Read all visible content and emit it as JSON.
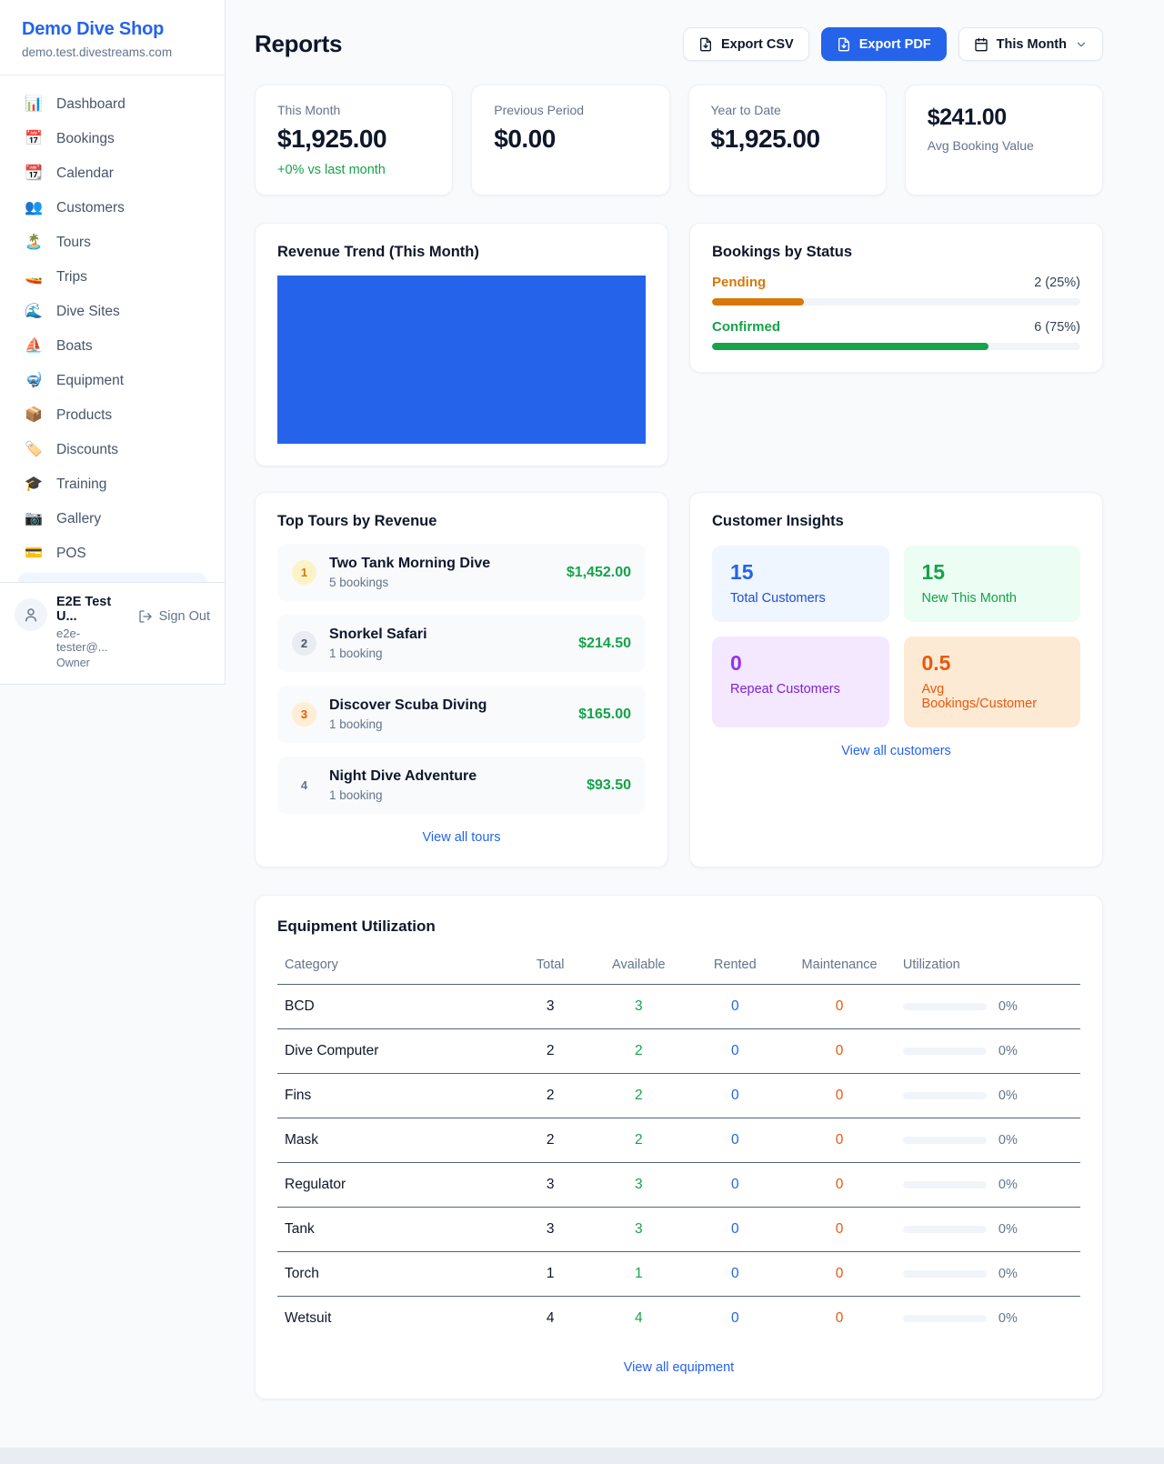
{
  "app": {
    "brand": "Demo Dive Shop",
    "subdomain": "demo.test.divestreams.com"
  },
  "colors": {
    "accent_blue": "#2563eb",
    "positive_green": "#16a34a",
    "pending_orange": "#d97706",
    "maintenance_orange": "#ea580c",
    "repeat_purple": "#9333ea"
  },
  "sidebar": {
    "items": [
      {
        "label": "Dashboard",
        "icon": "📊"
      },
      {
        "label": "Bookings",
        "icon": "📅"
      },
      {
        "label": "Calendar",
        "icon": "📆"
      },
      {
        "label": "Customers",
        "icon": "👥"
      },
      {
        "label": "Tours",
        "icon": "🏝️"
      },
      {
        "label": "Trips",
        "icon": "🚤"
      },
      {
        "label": "Dive Sites",
        "icon": "🌊"
      },
      {
        "label": "Boats",
        "icon": "⛵"
      },
      {
        "label": "Equipment",
        "icon": "🤿"
      },
      {
        "label": "Products",
        "icon": "📦"
      },
      {
        "label": "Discounts",
        "icon": "🏷️"
      },
      {
        "label": "Training",
        "icon": "🎓"
      },
      {
        "label": "Gallery",
        "icon": "📷"
      },
      {
        "label": "POS",
        "icon": "💳"
      }
    ],
    "user": {
      "name": "E2E Test U...",
      "email": "e2e-tester@...",
      "role": "Owner",
      "signout_label": "Sign Out"
    }
  },
  "header": {
    "title": "Reports",
    "export_csv_label": "Export CSV",
    "export_pdf_label": "Export PDF",
    "period_label": "This Month"
  },
  "stats": [
    {
      "label": "This Month",
      "value": "$1,925.00",
      "delta": "+0% vs last month"
    },
    {
      "label": "Previous Period",
      "value": "$0.00"
    },
    {
      "label": "Year to Date",
      "value": "$1,925.00"
    },
    {
      "label": "Avg Booking Value",
      "value": "$241.00"
    }
  ],
  "revenue_trend": {
    "title": "Revenue Trend (This Month)",
    "bar_color": "#2563eb"
  },
  "bookings_by_status": {
    "title": "Bookings by Status",
    "rows": [
      {
        "label": "Pending",
        "count_text": "2 (25%)",
        "pct": "25%"
      },
      {
        "label": "Confirmed",
        "count_text": "6 (75%)",
        "pct": "75%"
      }
    ]
  },
  "top_tours": {
    "title": "Top Tours by Revenue",
    "rows": [
      {
        "rank": "1",
        "name": "Two Tank Morning Dive",
        "bookings": "5 bookings",
        "revenue": "$1,452.00"
      },
      {
        "rank": "2",
        "name": "Snorkel Safari",
        "bookings": "1 booking",
        "revenue": "$214.50"
      },
      {
        "rank": "3",
        "name": "Discover Scuba Diving",
        "bookings": "1 booking",
        "revenue": "$165.00"
      },
      {
        "rank": "4",
        "name": "Night Dive Adventure",
        "bookings": "1 booking",
        "revenue": "$93.50"
      }
    ],
    "view_all_label": "View all tours"
  },
  "customer_insights": {
    "title": "Customer Insights",
    "tiles": [
      {
        "value": "15",
        "label": "Total Customers"
      },
      {
        "value": "15",
        "label": "New This Month"
      },
      {
        "value": "0",
        "label": "Repeat Customers"
      },
      {
        "value": "0.5",
        "label": "Avg Bookings/Customer"
      }
    ],
    "view_all_label": "View all customers"
  },
  "equipment": {
    "title": "Equipment Utilization",
    "columns": [
      "Category",
      "Total",
      "Available",
      "Rented",
      "Maintenance",
      "Utilization"
    ],
    "rows": [
      {
        "category": "BCD",
        "total": "3",
        "available": "3",
        "rented": "0",
        "maintenance": "0",
        "utilization": "0%",
        "util_pct": "0%"
      },
      {
        "category": "Dive Computer",
        "total": "2",
        "available": "2",
        "rented": "0",
        "maintenance": "0",
        "utilization": "0%",
        "util_pct": "0%"
      },
      {
        "category": "Fins",
        "total": "2",
        "available": "2",
        "rented": "0",
        "maintenance": "0",
        "utilization": "0%",
        "util_pct": "0%"
      },
      {
        "category": "Mask",
        "total": "2",
        "available": "2",
        "rented": "0",
        "maintenance": "0",
        "utilization": "0%",
        "util_pct": "0%"
      },
      {
        "category": "Regulator",
        "total": "3",
        "available": "3",
        "rented": "0",
        "maintenance": "0",
        "utilization": "0%",
        "util_pct": "0%"
      },
      {
        "category": "Tank",
        "total": "3",
        "available": "3",
        "rented": "0",
        "maintenance": "0",
        "utilization": "0%",
        "util_pct": "0%"
      },
      {
        "category": "Torch",
        "total": "1",
        "available": "1",
        "rented": "0",
        "maintenance": "0",
        "utilization": "0%",
        "util_pct": "0%"
      },
      {
        "category": "Wetsuit",
        "total": "4",
        "available": "4",
        "rented": "0",
        "maintenance": "0",
        "utilization": "0%",
        "util_pct": "0%"
      }
    ],
    "view_all_label": "View all equipment"
  }
}
